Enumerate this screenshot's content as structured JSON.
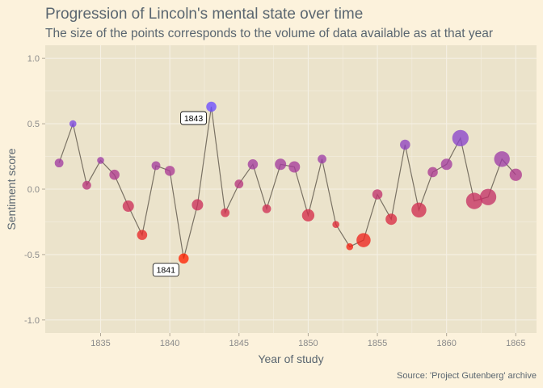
{
  "chart_data": {
    "type": "scatter",
    "title": "Progression of Lincoln's mental state over time",
    "subtitle": "The size of the points corresponds to the volume of data available as at that year",
    "xlabel": "Year of study",
    "ylabel": "Sentiment score",
    "caption": "Source: 'Project Gutenberg' archive",
    "xlim": [
      1831,
      1866.5
    ],
    "ylim": [
      -1.1,
      1.1
    ],
    "x_ticks": [
      1835,
      1840,
      1845,
      1850,
      1855,
      1860,
      1865
    ],
    "y_ticks": [
      -1.0,
      -0.5,
      0.0,
      0.5,
      1.0
    ],
    "y_tick_labels": [
      "-1.0",
      "-0.5",
      "0.0",
      "0.5",
      "1.0"
    ],
    "grid": true,
    "connected_line": true,
    "points": [
      {
        "x": 1832,
        "y": 0.2,
        "size": 2
      },
      {
        "x": 1833,
        "y": 0.5,
        "size": 1
      },
      {
        "x": 1834,
        "y": 0.03,
        "size": 2
      },
      {
        "x": 1835,
        "y": 0.22,
        "size": 1
      },
      {
        "x": 1836,
        "y": 0.11,
        "size": 3
      },
      {
        "x": 1837,
        "y": -0.13,
        "size": 4
      },
      {
        "x": 1838,
        "y": -0.35,
        "size": 3
      },
      {
        "x": 1839,
        "y": 0.18,
        "size": 2
      },
      {
        "x": 1840,
        "y": 0.14,
        "size": 3
      },
      {
        "x": 1841,
        "y": -0.53,
        "size": 3
      },
      {
        "x": 1842,
        "y": -0.12,
        "size": 4
      },
      {
        "x": 1843,
        "y": 0.63,
        "size": 3
      },
      {
        "x": 1844,
        "y": -0.18,
        "size": 2
      },
      {
        "x": 1845,
        "y": 0.04,
        "size": 2
      },
      {
        "x": 1846,
        "y": 0.19,
        "size": 3
      },
      {
        "x": 1847,
        "y": -0.15,
        "size": 2
      },
      {
        "x": 1848,
        "y": 0.19,
        "size": 4
      },
      {
        "x": 1849,
        "y": 0.17,
        "size": 4
      },
      {
        "x": 1850,
        "y": -0.2,
        "size": 5
      },
      {
        "x": 1851,
        "y": 0.23,
        "size": 2
      },
      {
        "x": 1852,
        "y": -0.27,
        "size": 1
      },
      {
        "x": 1853,
        "y": -0.44,
        "size": 1
      },
      {
        "x": 1854,
        "y": -0.39,
        "size": 7
      },
      {
        "x": 1855,
        "y": -0.04,
        "size": 3
      },
      {
        "x": 1856,
        "y": -0.23,
        "size": 4
      },
      {
        "x": 1857,
        "y": 0.34,
        "size": 3
      },
      {
        "x": 1858,
        "y": -0.16,
        "size": 8
      },
      {
        "x": 1859,
        "y": 0.13,
        "size": 3
      },
      {
        "x": 1860,
        "y": 0.19,
        "size": 4
      },
      {
        "x": 1861,
        "y": 0.39,
        "size": 10
      },
      {
        "x": 1862,
        "y": -0.09,
        "size": 10
      },
      {
        "x": 1863,
        "y": -0.06,
        "size": 10
      },
      {
        "x": 1864,
        "y": 0.23,
        "size": 9
      },
      {
        "x": 1865,
        "y": 0.11,
        "size": 5
      }
    ],
    "annotations": [
      {
        "text": "1843",
        "x": 1843
      },
      {
        "text": "1841",
        "x": 1841
      }
    ],
    "colors": {
      "background": "#fcf2dc",
      "panel": "#ebe3cb",
      "grid": "#f5f0e4",
      "line": "#7a7264",
      "text": "#5a6670",
      "tick": "#8a8a8a",
      "low": "#ff2000",
      "high": "#6b4dff"
    }
  }
}
